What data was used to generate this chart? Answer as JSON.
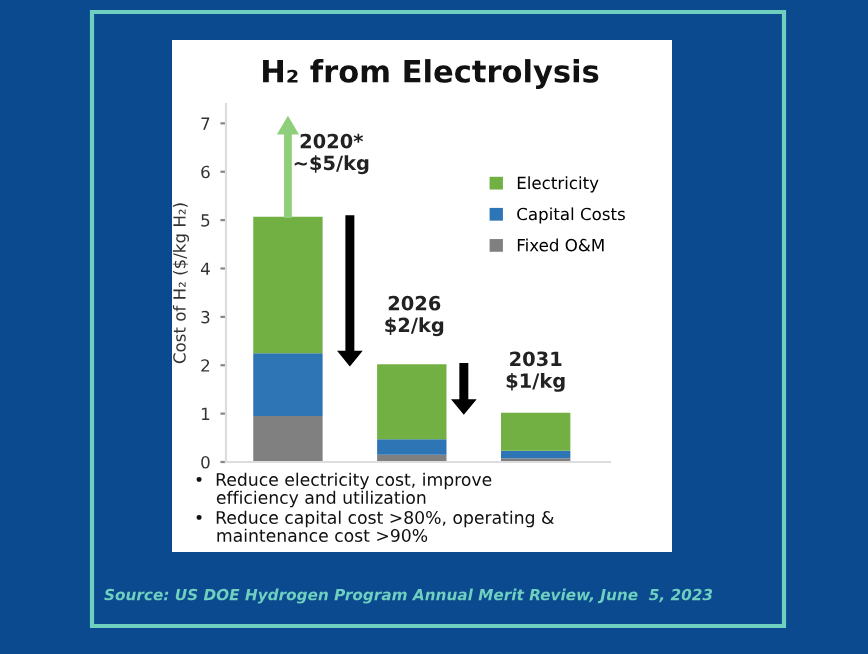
{
  "chart_data": {
    "type": "bar",
    "stacked": true,
    "title": "H₂ from Electrolysis",
    "ylabel": "Cost of H₂ ($/kg H₂)",
    "categories": [
      null,
      null,
      null
    ],
    "series": [
      {
        "name": "Fixed O&M",
        "color": "#808080",
        "values": [
          0.95,
          0.15,
          0.08
        ]
      },
      {
        "name": "Capital Costs",
        "color": "#2e75b6",
        "values": [
          1.3,
          0.32,
          0.15
        ]
      },
      {
        "name": "Electricity",
        "color": "#72b043",
        "values": [
          2.82,
          1.55,
          0.79
        ]
      }
    ],
    "ylim": [
      0,
      7.4
    ],
    "yticks": [
      0,
      1,
      2,
      3,
      4,
      5,
      6,
      7
    ],
    "grid": false,
    "legend": "top right",
    "annotations": [
      "2020*\n~$5/kg",
      "2026\n$2/kg",
      "2031\n$1/kg",
      "•  Reduce electricity cost, improve\n    efficiency and utilization",
      "•  Reduce capital cost >80%, operating &\n    maintenance cost >90%",
      "Source: US DOE Hydrogen Program Annual Merit Review, June  5, 2023"
    ]
  }
}
